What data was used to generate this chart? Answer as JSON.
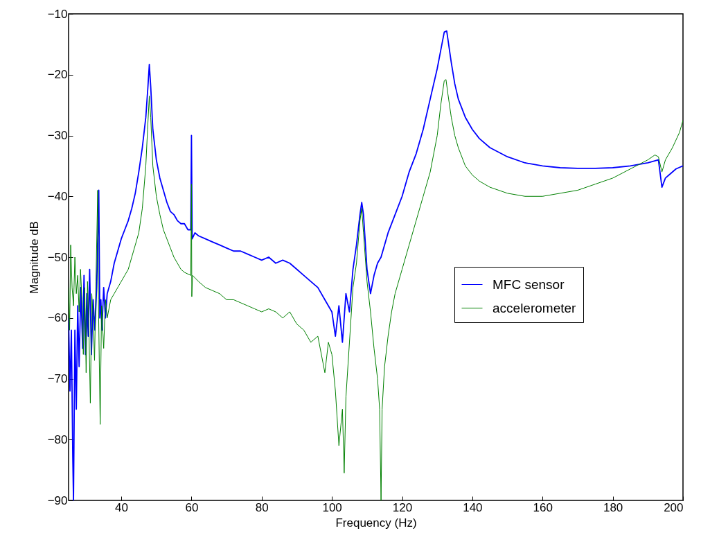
{
  "chart_data": {
    "type": "line",
    "xlabel": "Frequency (Hz)",
    "ylabel": "Magnitude dB",
    "xlim": [
      25,
      200
    ],
    "ylim": [
      -90,
      -10
    ],
    "xticks": [
      40,
      60,
      80,
      100,
      120,
      140,
      160,
      180,
      200
    ],
    "yticks": [
      -90,
      -80,
      -70,
      -60,
      -50,
      -40,
      -30,
      -20,
      -10
    ],
    "grid": false,
    "legend": "right",
    "line_style": "solid",
    "marker": "none",
    "series": [
      {
        "name": "MFC sensor",
        "color": "#0000ff",
        "x": [
          25,
          25.4,
          25.8,
          26.2,
          26.4,
          26.8,
          27.2,
          27.6,
          28,
          28.5,
          29,
          29.4,
          29.8,
          30.2,
          30.6,
          31,
          31.5,
          32,
          32.5,
          33,
          33.6,
          33.9,
          34.2,
          34.5,
          35,
          35.5,
          36,
          37,
          38,
          39,
          40,
          41,
          42,
          43,
          44,
          45,
          46,
          47,
          47.6,
          48,
          48.4,
          49,
          50,
          51,
          52,
          53,
          54,
          55,
          56,
          57,
          58,
          59,
          59.8,
          60,
          60.2,
          61,
          62,
          64,
          66,
          68,
          70,
          72,
          74,
          76,
          78,
          80,
          82,
          84,
          86,
          88,
          90,
          92,
          94,
          96,
          98,
          100,
          101,
          102,
          103,
          104,
          105,
          106,
          107,
          108,
          108.5,
          109,
          110,
          111,
          112,
          113,
          114,
          115,
          116,
          118,
          120,
          122,
          124,
          126,
          128,
          130,
          131,
          132,
          132.7,
          133,
          134,
          135,
          136,
          138,
          140,
          142,
          145,
          150,
          155,
          160,
          165,
          170,
          175,
          180,
          185,
          190,
          193,
          194,
          195,
          196,
          198,
          200
        ],
        "values": [
          -60,
          -72,
          -62,
          -83,
          -90,
          -62,
          -75,
          -58,
          -68,
          -55,
          -65,
          -53,
          -66,
          -56,
          -63,
          -52,
          -66,
          -57,
          -62,
          -55,
          -39,
          -60,
          -57,
          -62,
          -55,
          -60,
          -56,
          -54,
          -51,
          -49,
          -47,
          -45.5,
          -44,
          -42,
          -39.5,
          -36,
          -32,
          -27,
          -22,
          -18.3,
          -22,
          -29,
          -34,
          -37,
          -39,
          -41,
          -42.5,
          -43,
          -44,
          -44.5,
          -44.5,
          -45.5,
          -45.5,
          -30,
          -47,
          -46,
          -46.5,
          -47,
          -47.5,
          -48,
          -48.5,
          -49,
          -49,
          -49.5,
          -50,
          -50.5,
          -50,
          -51,
          -50.5,
          -51,
          -52,
          -53,
          -54,
          -55,
          -57,
          -59,
          -63,
          -58,
          -64,
          -56,
          -59,
          -52,
          -48,
          -43,
          -41,
          -43,
          -52,
          -56,
          -53,
          -51,
          -50,
          -48,
          -46,
          -43,
          -40,
          -36,
          -33,
          -29,
          -24,
          -19,
          -16,
          -13,
          -12.8,
          -14,
          -18,
          -21.5,
          -24,
          -27,
          -29,
          -30.5,
          -32,
          -33.5,
          -34.5,
          -35,
          -35.3,
          -35.4,
          -35.4,
          -35.3,
          -35,
          -34.5,
          -34,
          -38.5,
          -37,
          -36.5,
          -35.5,
          -35
        ]
      },
      {
        "name": "accelerometer",
        "color": "#008000",
        "x": [
          25,
          25.3,
          25.6,
          26,
          26.4,
          26.8,
          27.2,
          27.6,
          28,
          28.4,
          28.8,
          29.2,
          29.6,
          30,
          30.4,
          30.8,
          31.2,
          31.6,
          32,
          32.4,
          32.8,
          33.3,
          33.5,
          34,
          34.4,
          35,
          35.5,
          36,
          37,
          38,
          39,
          40,
          41,
          42,
          43,
          44,
          45,
          46,
          47,
          47.5,
          48,
          48.4,
          49,
          50,
          51,
          52,
          53,
          54,
          55,
          56,
          57,
          58,
          59.8,
          60,
          60.1,
          60.3,
          62,
          64,
          66,
          68,
          70,
          72,
          74,
          76,
          78,
          80,
          82,
          84,
          86,
          88,
          90,
          92,
          94,
          96,
          98,
          99,
          100,
          101,
          102,
          103,
          103.5,
          104,
          105,
          106,
          107,
          108,
          108.5,
          109,
          110,
          111,
          112,
          113,
          113.6,
          114,
          114.3,
          115,
          116,
          117,
          118,
          120,
          122,
          124,
          126,
          128,
          130,
          131,
          132,
          132.5,
          133,
          134,
          135,
          136,
          138,
          140,
          142,
          145,
          150,
          155,
          160,
          165,
          170,
          175,
          180,
          185,
          190,
          192,
          193,
          194,
          195,
          197,
          199,
          200
        ],
        "values": [
          -55,
          -62,
          -48,
          -55,
          -58,
          -50,
          -56,
          -53,
          -59,
          -52,
          -57,
          -66,
          -55,
          -69,
          -54,
          -62,
          -74,
          -56,
          -60,
          -67,
          -54,
          -39,
          -57,
          -77.5,
          -58,
          -65,
          -57,
          -60,
          -57,
          -56,
          -55,
          -54,
          -53,
          -52,
          -50,
          -48,
          -46,
          -42,
          -35,
          -29,
          -23.5,
          -27,
          -35,
          -40,
          -43,
          -45.5,
          -47,
          -48.5,
          -50,
          -51,
          -52,
          -52.5,
          -53,
          -38,
          -56.5,
          -53,
          -54,
          -55,
          -55.5,
          -56,
          -57,
          -57,
          -57.5,
          -58,
          -58.5,
          -59,
          -58.5,
          -59,
          -60,
          -59,
          -61,
          -62,
          -64,
          -63,
          -69,
          -64,
          -66,
          -72,
          -81,
          -75,
          -85.5,
          -73,
          -64,
          -55,
          -51,
          -44,
          -42,
          -46,
          -54,
          -59,
          -65,
          -70,
          -75,
          -90,
          -75,
          -68,
          -63,
          -59,
          -56,
          -52,
          -48,
          -44,
          -40,
          -36,
          -30,
          -25,
          -21,
          -20.8,
          -23,
          -27,
          -30,
          -32,
          -35,
          -36.5,
          -37.5,
          -38.5,
          -39.5,
          -40,
          -40,
          -39.5,
          -39,
          -38,
          -37,
          -35.5,
          -34,
          -33.2,
          -33.5,
          -36,
          -34,
          -32,
          -29.5,
          -27.5
        ]
      }
    ]
  }
}
